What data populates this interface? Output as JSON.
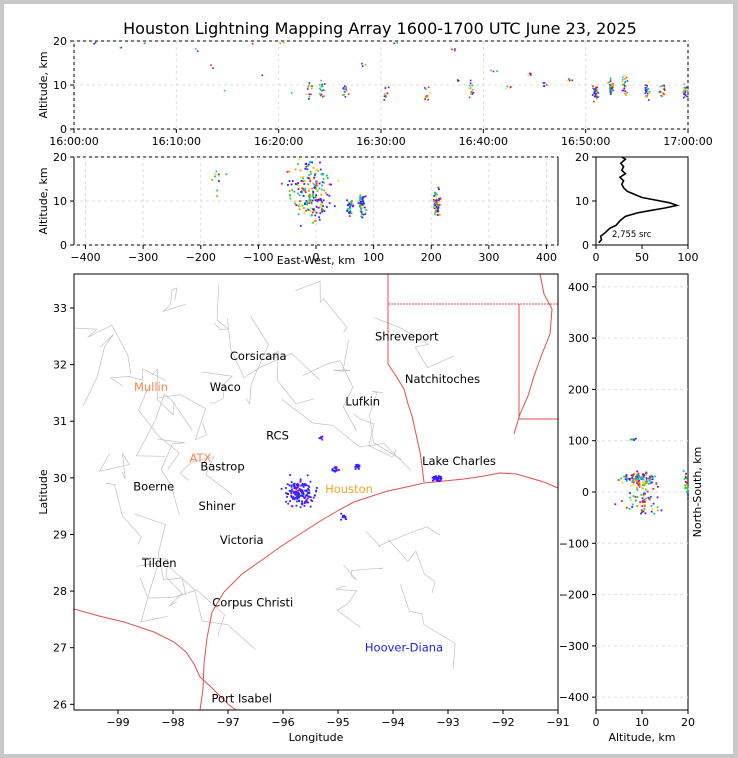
{
  "figure": {
    "title": "Houston Lightning Mapping Array 1600-1700 UTC June 23, 2025"
  },
  "chart_data": [
    {
      "id": "time_altitude",
      "type": "scatter",
      "xlabel": "",
      "ylabel": "Altitude, km",
      "xlim": [
        "16:00:00",
        "17:00:00"
      ],
      "ylim": [
        0,
        20
      ],
      "x_tick_labels": [
        "16:00:00",
        "16:10:00",
        "16:20:00",
        "16:30:00",
        "16:40:00",
        "16:50:00",
        "17:00:00"
      ],
      "y_tick_labels": [
        "0",
        "10",
        "20"
      ],
      "grid": true,
      "clusters": [
        {
          "x_min": 0.02,
          "y": 8.0,
          "n": 1
        },
        {
          "x_min": 2.0,
          "y": 19.5,
          "n": 2
        },
        {
          "x_min": 4.5,
          "y": 18.5,
          "n": 2
        },
        {
          "x_min": 7.0,
          "y": 19.5,
          "n": 2
        },
        {
          "x_min": 12.0,
          "y": 18.0,
          "n": 2
        },
        {
          "x_min": 13.5,
          "y": 14.0,
          "n": 2
        },
        {
          "x_min": 14.5,
          "y": 9.0,
          "n": 1
        },
        {
          "x_min": 17.5,
          "y": 19.2,
          "n": 2
        },
        {
          "x_min": 18.5,
          "y": 12.0,
          "n": 1
        },
        {
          "x_min": 20.5,
          "y": 19.5,
          "n": 2
        },
        {
          "x_min": 21.5,
          "y": 8.5,
          "n": 1
        },
        {
          "x_min": 23.0,
          "y": 9.0,
          "n": 14
        },
        {
          "x_min": 24.3,
          "y": 9.0,
          "n": 18
        },
        {
          "x_min": 26.5,
          "y": 9.0,
          "n": 14
        },
        {
          "x_min": 28.5,
          "y": 14.5,
          "n": 3
        },
        {
          "x_min": 30.5,
          "y": 8.5,
          "n": 12
        },
        {
          "x_min": 31.5,
          "y": 19.5,
          "n": 2
        },
        {
          "x_min": 34.5,
          "y": 8.0,
          "n": 12
        },
        {
          "x_min": 37.0,
          "y": 18.0,
          "n": 4
        },
        {
          "x_min": 37.5,
          "y": 11.0,
          "n": 3
        },
        {
          "x_min": 38.8,
          "y": 9.0,
          "n": 16
        },
        {
          "x_min": 41.0,
          "y": 13.0,
          "n": 3
        },
        {
          "x_min": 42.5,
          "y": 9.5,
          "n": 4
        },
        {
          "x_min": 44.5,
          "y": 12.5,
          "n": 5
        },
        {
          "x_min": 46.0,
          "y": 10.0,
          "n": 5
        },
        {
          "x_min": 48.5,
          "y": 11.0,
          "n": 5
        },
        {
          "x_min": 51.0,
          "y": 8.5,
          "n": 36
        },
        {
          "x_min": 52.5,
          "y": 9.5,
          "n": 36
        },
        {
          "x_min": 53.8,
          "y": 10.0,
          "n": 24
        },
        {
          "x_min": 56.0,
          "y": 9.0,
          "n": 30
        },
        {
          "x_min": 57.5,
          "y": 9.0,
          "n": 18
        },
        {
          "x_min": 59.7,
          "y": 8.5,
          "n": 26
        }
      ]
    },
    {
      "id": "ew_altitude",
      "type": "scatter",
      "xlabel": "East-West, km",
      "ylabel": "Altitude, km",
      "xlim": [
        -420,
        420
      ],
      "ylim": [
        0,
        20
      ],
      "x_tick_labels": [
        "−400",
        "−300",
        "−200",
        "−100",
        "0",
        "100",
        "200",
        "300",
        "400"
      ],
      "y_tick_labels": [
        "0",
        "10",
        "20"
      ],
      "grid": true,
      "clusters": [
        {
          "x": -10,
          "y": 12.0,
          "sx": 30,
          "sy": 5.5,
          "n": 200
        },
        {
          "x": 60,
          "y": 8.5,
          "sx": 5,
          "sy": 1.5,
          "n": 30
        },
        {
          "x": 80,
          "y": 9.0,
          "sx": 6,
          "sy": 2.0,
          "n": 50
        },
        {
          "x": 210,
          "y": 9.5,
          "sx": 5,
          "sy": 2.5,
          "n": 70
        },
        {
          "x": -160,
          "y": 15.0,
          "sx": 25,
          "sy": 3.0,
          "n": 10
        }
      ]
    },
    {
      "id": "altitude_histogram",
      "type": "line",
      "xlabel": "",
      "ylabel": "",
      "xlim": [
        0,
        100
      ],
      "ylim": [
        0,
        20
      ],
      "x_tick_labels": [
        "0",
        "50",
        "100"
      ],
      "y_tick_labels": [
        "0",
        "10",
        "20"
      ],
      "annotation": "2,755 src",
      "points": [
        [
          3,
          0.5
        ],
        [
          6,
          1.2
        ],
        [
          5,
          2.0
        ],
        [
          10,
          2.8
        ],
        [
          15,
          3.8
        ],
        [
          22,
          4.5
        ],
        [
          26,
          5.5
        ],
        [
          32,
          6.5
        ],
        [
          45,
          7.3
        ],
        [
          58,
          7.8
        ],
        [
          75,
          8.4
        ],
        [
          88,
          9.0
        ],
        [
          80,
          9.6
        ],
        [
          65,
          10.2
        ],
        [
          50,
          10.8
        ],
        [
          42,
          11.5
        ],
        [
          34,
          12.2
        ],
        [
          30,
          13.0
        ],
        [
          28,
          13.8
        ],
        [
          30,
          14.6
        ],
        [
          26,
          15.4
        ],
        [
          32,
          16.2
        ],
        [
          28,
          17.0
        ],
        [
          30,
          17.8
        ],
        [
          27,
          18.6
        ],
        [
          32,
          19.5
        ],
        [
          28,
          20.0
        ]
      ]
    },
    {
      "id": "plan_view",
      "type": "scatter",
      "xlabel": "Longitude",
      "ylabel": "Latitude",
      "xlim": [
        -99.8,
        -91.0
      ],
      "ylim": [
        25.9,
        33.6
      ],
      "x_tick_labels": [
        "−99",
        "−98",
        "−97",
        "−96",
        "−95",
        "−94",
        "−93",
        "−92",
        "−91"
      ],
      "y_tick_labels": [
        "26",
        "27",
        "28",
        "29",
        "30",
        "31",
        "32",
        "33"
      ],
      "clusters": [
        {
          "lon": -95.7,
          "lat": 29.75,
          "slon": 0.22,
          "slat": 0.2,
          "n": 160
        },
        {
          "lon": -95.05,
          "lat": 30.15,
          "slon": 0.05,
          "slat": 0.04,
          "n": 14
        },
        {
          "lon": -94.65,
          "lat": 30.2,
          "slon": 0.05,
          "slat": 0.04,
          "n": 16
        },
        {
          "lon": -93.2,
          "lat": 29.98,
          "slon": 0.07,
          "slat": 0.05,
          "n": 40
        },
        {
          "lon": -95.3,
          "lat": 30.7,
          "slon": 0.03,
          "slat": 0.03,
          "n": 6
        },
        {
          "lon": -94.9,
          "lat": 29.3,
          "slon": 0.06,
          "slat": 0.05,
          "n": 10
        }
      ],
      "cities": [
        {
          "name": "Shreveport",
          "lon": -93.75,
          "lat": 32.5,
          "color": "#000000"
        },
        {
          "name": "Corsicana",
          "lon": -96.45,
          "lat": 32.15,
          "color": "#000000"
        },
        {
          "name": "Natchitoches",
          "lon": -93.1,
          "lat": 31.75,
          "color": "#000000"
        },
        {
          "name": "Mullin",
          "lon": -98.4,
          "lat": 31.6,
          "color": "#f5894f"
        },
        {
          "name": "Waco",
          "lon": -97.05,
          "lat": 31.6,
          "color": "#000000"
        },
        {
          "name": "Lufkin",
          "lon": -94.55,
          "lat": 31.35,
          "color": "#000000"
        },
        {
          "name": "ATX",
          "lon": -97.5,
          "lat": 30.35,
          "color": "#f5894f"
        },
        {
          "name": "Bastrop",
          "lon": -97.1,
          "lat": 30.2,
          "color": "#000000"
        },
        {
          "name": "Lake Charles",
          "lon": -92.8,
          "lat": 30.3,
          "color": "#000000"
        },
        {
          "name": "Boerne",
          "lon": -98.35,
          "lat": 29.85,
          "color": "#000000"
        },
        {
          "name": "Houston",
          "lon": -94.8,
          "lat": 29.8,
          "color": "#f5a623"
        },
        {
          "name": "Shiner",
          "lon": -97.2,
          "lat": 29.5,
          "color": "#000000"
        },
        {
          "name": "Victoria",
          "lon": -96.75,
          "lat": 28.9,
          "color": "#000000"
        },
        {
          "name": "Tilden",
          "lon": -98.25,
          "lat": 28.5,
          "color": "#000000"
        },
        {
          "name": "Corpus Christi",
          "lon": -96.55,
          "lat": 27.8,
          "color": "#000000"
        },
        {
          "name": "Hoover-Diana",
          "lon": -93.8,
          "lat": 27.0,
          "color": "#1e1ee6"
        },
        {
          "name": "Port Isabel",
          "lon": -96.75,
          "lat": 26.1,
          "color": "#000000"
        },
        {
          "name": "RCS",
          "lon": -96.1,
          "lat": 30.75,
          "color": "#000000"
        }
      ]
    },
    {
      "id": "altitude_ns",
      "type": "scatter",
      "xlabel": "Altitude, km",
      "ylabel": "North-South, km",
      "xlim": [
        0,
        20
      ],
      "ylim": [
        -425,
        425
      ],
      "x_tick_labels": [
        "0",
        "10",
        "20"
      ],
      "y_tick_labels": [
        "−400",
        "−300",
        "−200",
        "−100",
        "0",
        "100",
        "200",
        "300",
        "400"
      ],
      "clusters": [
        {
          "x": 9.5,
          "y": 25,
          "sx": 3.0,
          "sy": 12,
          "n": 120
        },
        {
          "x": 10.0,
          "y": -20,
          "sx": 4.5,
          "sy": 25,
          "n": 60
        },
        {
          "x": 8.0,
          "y": 103,
          "sx": 1.0,
          "sy": 2,
          "n": 8
        },
        {
          "x": 19.5,
          "y": 20,
          "sx": 0.5,
          "sy": 30,
          "n": 20
        }
      ]
    }
  ],
  "colors": {
    "frame": "#c8c8c8",
    "state_border": "#e84b4b",
    "county_border": "#c0c0c0",
    "coast": "#e84b4b",
    "grid": "#dddddd",
    "histogram": "#000000",
    "point_palette": [
      "#8000ff",
      "#3a1dff",
      "#0033ff",
      "#00bfff",
      "#00cc66",
      "#33cc33",
      "#ffd400",
      "#ff8800",
      "#ff2200"
    ]
  }
}
